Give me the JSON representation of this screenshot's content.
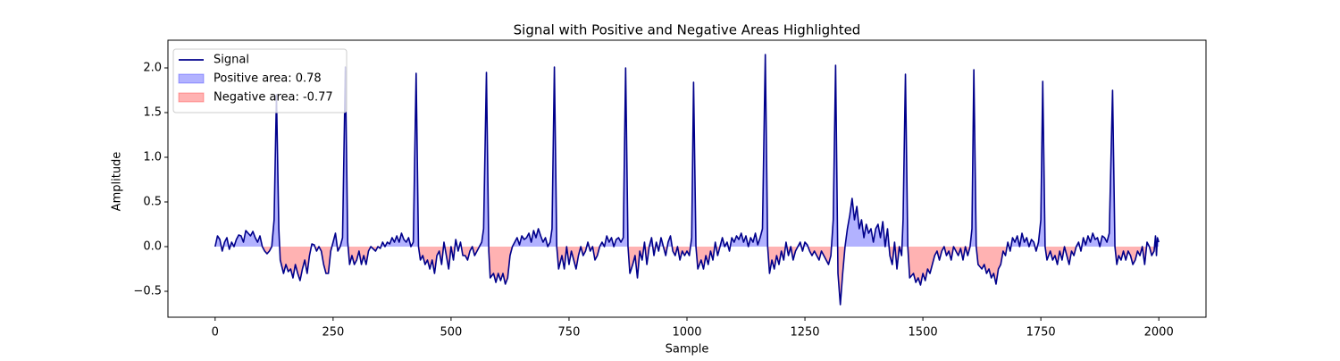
{
  "chart_data": {
    "type": "line",
    "title": "Signal with Positive and Negative Areas Highlighted",
    "xlabel": "Sample",
    "ylabel": "Amplitude",
    "x": [
      0,
      5,
      10,
      15,
      20,
      25,
      30,
      35,
      40,
      45,
      50,
      55,
      60,
      65,
      70,
      75,
      80,
      85,
      90,
      95,
      100,
      105,
      110,
      115,
      120,
      125,
      130,
      135,
      138,
      145,
      150,
      155,
      160,
      165,
      170,
      175,
      180,
      185,
      190,
      195,
      200,
      205,
      210,
      215,
      220,
      225,
      230,
      235,
      240,
      245,
      250,
      255,
      260,
      265,
      270,
      276,
      281,
      285,
      290,
      295,
      300,
      305,
      310,
      315,
      320,
      325,
      330,
      340,
      345,
      350,
      355,
      360,
      365,
      370,
      375,
      380,
      385,
      390,
      395,
      400,
      405,
      410,
      415,
      420,
      426,
      431,
      435,
      440,
      445,
      450,
      455,
      460,
      465,
      470,
      475,
      480,
      485,
      490,
      495,
      500,
      505,
      510,
      515,
      520,
      525,
      530,
      535,
      540,
      545,
      550,
      555,
      560,
      565,
      569,
      575,
      580,
      583,
      590,
      595,
      600,
      605,
      610,
      615,
      620,
      625,
      630,
      635,
      640,
      645,
      650,
      655,
      660,
      665,
      670,
      675,
      680,
      685,
      690,
      695,
      700,
      705,
      710,
      714,
      719,
      724,
      728,
      735,
      740,
      745,
      750,
      755,
      760,
      765,
      770,
      775,
      780,
      785,
      790,
      795,
      800,
      805,
      810,
      815,
      820,
      825,
      830,
      835,
      840,
      845,
      850,
      855,
      860,
      865,
      870,
      875,
      879,
      885,
      890,
      895,
      900,
      905,
      910,
      915,
      920,
      925,
      930,
      935,
      940,
      945,
      950,
      955,
      960,
      965,
      970,
      975,
      980,
      985,
      990,
      995,
      1000,
      1005,
      1010,
      1014,
      1019,
      1023,
      1030,
      1035,
      1040,
      1045,
      1050,
      1055,
      1060,
      1065,
      1070,
      1075,
      1080,
      1085,
      1090,
      1095,
      1100,
      1105,
      1110,
      1115,
      1120,
      1125,
      1130,
      1135,
      1140,
      1145,
      1150,
      1155,
      1160,
      1166,
      1171,
      1175,
      1180,
      1185,
      1190,
      1195,
      1200,
      1205,
      1210,
      1215,
      1220,
      1225,
      1230,
      1235,
      1240,
      1245,
      1250,
      1255,
      1260,
      1265,
      1270,
      1275,
      1280,
      1285,
      1290,
      1295,
      1300,
      1305,
      1310,
      1315,
      1320,
      1325,
      1330,
      1335,
      1340,
      1345,
      1350,
      1355,
      1360,
      1365,
      1370,
      1375,
      1380,
      1385,
      1390,
      1395,
      1400,
      1405,
      1410,
      1415,
      1420,
      1425,
      1430,
      1435,
      1440,
      1445,
      1450,
      1455,
      1458,
      1463,
      1468,
      1472,
      1480,
      1485,
      1490,
      1495,
      1500,
      1505,
      1510,
      1515,
      1520,
      1525,
      1530,
      1535,
      1540,
      1545,
      1550,
      1555,
      1560,
      1565,
      1570,
      1575,
      1580,
      1585,
      1590,
      1595,
      1600,
      1604,
      1608,
      1613,
      1617,
      1625,
      1630,
      1635,
      1640,
      1645,
      1650,
      1655,
      1660,
      1665,
      1670,
      1675,
      1680,
      1685,
      1690,
      1695,
      1700,
      1705,
      1710,
      1715,
      1720,
      1725,
      1730,
      1735,
      1740,
      1745,
      1750,
      1754,
      1759,
      1763,
      1770,
      1775,
      1780,
      1785,
      1790,
      1795,
      1800,
      1805,
      1810,
      1815,
      1820,
      1825,
      1830,
      1835,
      1840,
      1845,
      1850,
      1855,
      1860,
      1865,
      1870,
      1875,
      1880,
      1885,
      1890,
      1895,
      1902,
      1907,
      1911,
      1915,
      1920,
      1925,
      1930,
      1935,
      1940,
      1945,
      1950,
      1955,
      1960,
      1965,
      1970,
      1975,
      1980,
      1985,
      1990,
      1993,
      1995,
      1997,
      2000
    ],
    "series": [
      {
        "name": "Signal",
        "color": "#00008b",
        "values": [
          0.0,
          0.12,
          0.08,
          -0.05,
          0.05,
          0.1,
          -0.03,
          0.05,
          0.0,
          0.08,
          0.13,
          0.12,
          0.05,
          0.18,
          0.15,
          0.12,
          0.17,
          0.1,
          0.05,
          0.12,
          0.0,
          -0.05,
          -0.08,
          -0.05,
          0.0,
          0.3,
          1.7,
          0.2,
          -0.15,
          -0.3,
          -0.2,
          -0.28,
          -0.25,
          -0.35,
          -0.2,
          -0.3,
          -0.38,
          -0.25,
          -0.15,
          -0.3,
          -0.1,
          0.03,
          0.02,
          -0.05,
          0.0,
          -0.05,
          -0.2,
          -0.3,
          -0.3,
          -0.05,
          0.05,
          0.15,
          -0.05,
          0.0,
          0.1,
          2.01,
          0.05,
          -0.2,
          -0.1,
          -0.2,
          -0.15,
          -0.05,
          -0.2,
          -0.1,
          -0.2,
          -0.05,
          0.0,
          -0.05,
          0.0,
          -0.02,
          0.05,
          0.0,
          0.05,
          0.03,
          0.1,
          0.05,
          0.12,
          0.05,
          0.15,
          0.08,
          0.05,
          0.1,
          0.0,
          0.05,
          1.94,
          0.0,
          -0.15,
          -0.1,
          -0.2,
          -0.15,
          -0.25,
          -0.15,
          -0.3,
          -0.1,
          -0.05,
          -0.2,
          0.05,
          -0.1,
          -0.25,
          0.0,
          -0.15,
          0.08,
          -0.05,
          0.05,
          -0.1,
          -0.1,
          -0.15,
          -0.05,
          0.0,
          -0.1,
          -0.05,
          0.0,
          0.05,
          0.2,
          1.95,
          -0.05,
          -0.35,
          -0.3,
          -0.4,
          -0.3,
          -0.38,
          -0.3,
          -0.42,
          -0.35,
          -0.1,
          0.0,
          0.05,
          0.1,
          0.02,
          0.12,
          0.08,
          0.1,
          0.15,
          0.05,
          0.18,
          0.1,
          0.2,
          0.12,
          0.05,
          0.1,
          0.0,
          0.05,
          0.2,
          2.01,
          0.0,
          -0.25,
          -0.1,
          -0.25,
          0.0,
          -0.2,
          -0.05,
          -0.15,
          -0.25,
          -0.1,
          0.0,
          -0.1,
          -0.05,
          0.05,
          -0.05,
          0.0,
          -0.15,
          -0.1,
          0.0,
          0.05,
          0.0,
          0.12,
          0.05,
          0.1,
          0.0,
          0.08,
          0.1,
          0.05,
          0.1,
          2.0,
          0.0,
          -0.3,
          -0.2,
          -0.1,
          -0.35,
          -0.05,
          -0.15,
          0.05,
          -0.2,
          0.0,
          0.1,
          -0.1,
          0.05,
          -0.05,
          0.1,
          0.0,
          -0.1,
          0.05,
          0.12,
          -0.05,
          -0.1,
          0.0,
          -0.15,
          -0.05,
          -0.1,
          -0.05,
          -0.1,
          0.1,
          1.84,
          0.0,
          -0.25,
          -0.15,
          -0.25,
          -0.1,
          -0.2,
          -0.05,
          -0.15,
          0.05,
          -0.1,
          0.0,
          0.1,
          0.0,
          0.05,
          -0.05,
          0.1,
          0.05,
          0.12,
          0.08,
          0.15,
          0.05,
          0.12,
          0.0,
          0.1,
          0.05,
          0.15,
          0.02,
          0.1,
          0.2,
          2.15,
          0.0,
          -0.3,
          -0.15,
          -0.25,
          -0.1,
          -0.2,
          -0.05,
          -0.15,
          0.05,
          -0.1,
          0.0,
          -0.15,
          -0.05,
          0.0,
          0.05,
          -0.05,
          0.05,
          0.02,
          -0.05,
          -0.1,
          -0.05,
          -0.1,
          -0.15,
          -0.05,
          -0.1,
          -0.15,
          -0.2,
          -0.1,
          0.3,
          2.03,
          -0.3,
          -0.65,
          -0.3,
          0.0,
          0.2,
          0.35,
          0.54,
          0.3,
          0.45,
          0.2,
          0.3,
          0.1,
          0.25,
          0.15,
          0.2,
          0.05,
          0.2,
          0.25,
          0.1,
          0.28,
          0.0,
          0.2,
          -0.1,
          -0.2,
          0.05,
          -0.25,
          0.0,
          -0.1,
          0.3,
          1.93,
          0.0,
          -0.35,
          -0.3,
          -0.4,
          -0.35,
          -0.43,
          -0.3,
          -0.38,
          -0.25,
          -0.3,
          -0.2,
          -0.1,
          -0.05,
          -0.15,
          -0.05,
          0.0,
          -0.1,
          -0.05,
          -0.15,
          0.0,
          -0.05,
          -0.1,
          -0.02,
          -0.15,
          0.0,
          -0.1,
          0.0,
          0.2,
          1.98,
          0.0,
          -0.2,
          -0.25,
          -0.2,
          -0.3,
          -0.25,
          -0.35,
          -0.3,
          -0.42,
          -0.25,
          -0.2,
          -0.05,
          -0.1,
          0.05,
          -0.05,
          0.1,
          0.05,
          0.12,
          0.0,
          0.15,
          0.05,
          0.1,
          0.0,
          0.08,
          0.05,
          -0.05,
          0.05,
          0.3,
          1.85,
          0.0,
          -0.15,
          -0.05,
          -0.15,
          -0.1,
          -0.2,
          -0.05,
          -0.15,
          0.0,
          -0.1,
          -0.2,
          -0.05,
          -0.1,
          0.0,
          0.05,
          -0.05,
          0.1,
          0.02,
          0.12,
          0.05,
          0.15,
          0.08,
          0.1,
          0.0,
          0.12,
          0.1,
          0.05,
          0.15,
          1.75,
          0.0,
          -0.2,
          -0.1,
          -0.15,
          -0.05,
          -0.15,
          -0.05,
          -0.1,
          -0.2,
          -0.15,
          -0.05,
          -0.1,
          0.0,
          -0.2,
          0.05,
          0.0,
          -0.1,
          -0.05,
          0.12,
          -0.1,
          0.1,
          0.05
        ]
      }
    ],
    "fills": [
      {
        "name": "Positive area: 0.78",
        "color": "#0000ff",
        "where": "positive"
      },
      {
        "name": "Negative area: -0.77",
        "color": "#ff0000",
        "where": "negative"
      }
    ],
    "fill_alpha": 0.3,
    "xlim": [
      -100,
      2100
    ],
    "ylim": [
      -0.79,
      2.31
    ],
    "xticks": [
      0,
      250,
      500,
      750,
      1000,
      1250,
      1500,
      1750,
      2000
    ],
    "yticks": [
      {
        "value": -0.5,
        "label": "−0.5"
      },
      {
        "value": 0,
        "label": "0.0"
      },
      0.5,
      {
        "value": 1,
        "label": "1.0"
      },
      1.5,
      {
        "value": 2,
        "label": "2.0"
      }
    ],
    "grid": false,
    "legend_loc": "upper-left"
  }
}
